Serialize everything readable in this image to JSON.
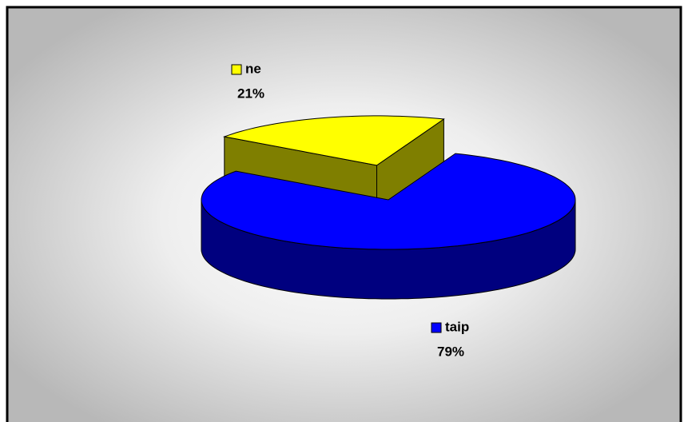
{
  "chart_data": {
    "type": "pie",
    "categories": [
      "taip",
      "ne"
    ],
    "values": [
      79,
      21
    ],
    "value_labels": [
      "79%",
      "21%"
    ],
    "colors": [
      "#0000ff",
      "#ffff00"
    ],
    "exploded": [
      false,
      true
    ]
  }
}
